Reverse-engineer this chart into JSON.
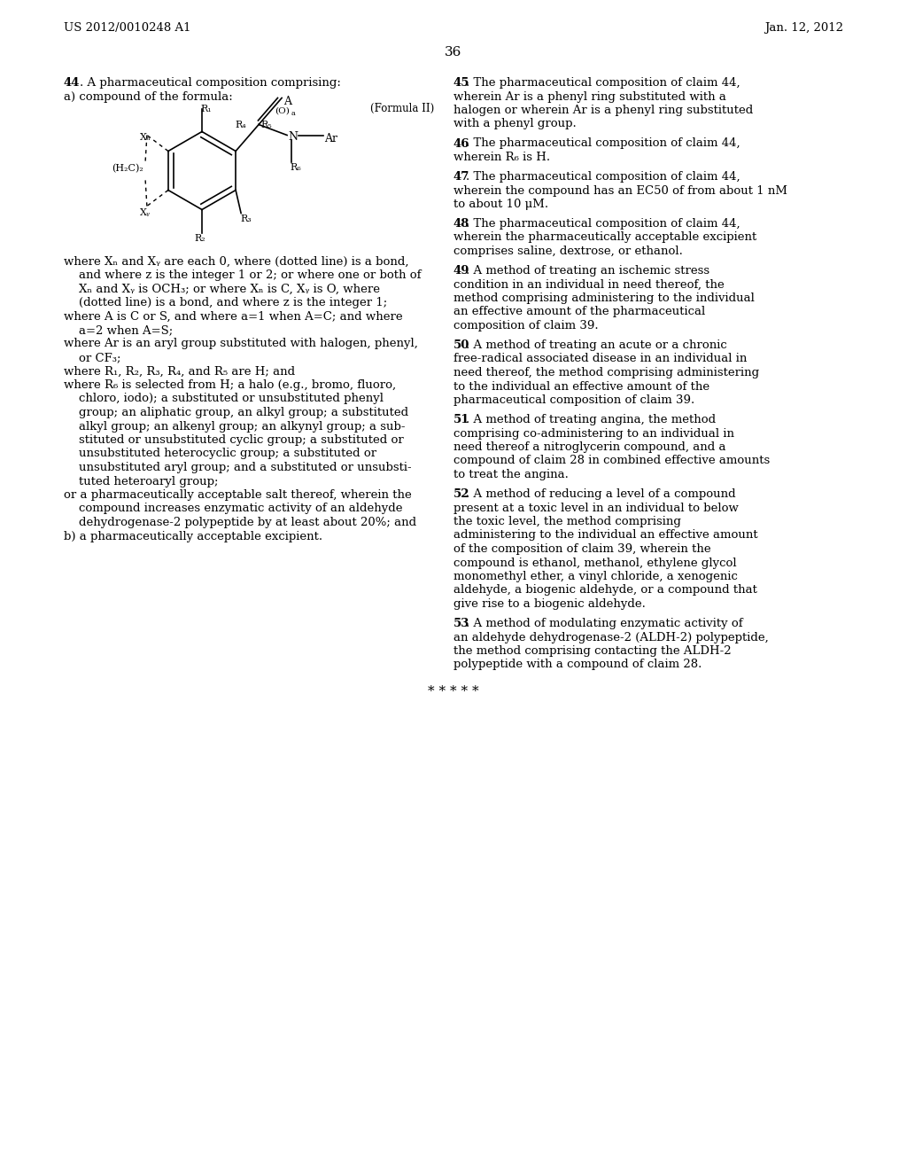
{
  "background_color": "#ffffff",
  "header_left": "US 2012/0010248 A1",
  "header_right": "Jan. 12, 2012",
  "page_number": "36",
  "where_texts": [
    "where Xₙ and Xᵧ are each 0, where (dotted line) is a bond,",
    "    and where z is the integer 1 or 2; or where one or both of",
    "    Xₙ and Xᵧ is OCH₃; or where Xₙ is C, Xᵧ is O, where",
    "    (dotted line) is a bond, and where z is the integer 1;",
    "where A is C or S, and where a=1 when A=C; and where",
    "    a=2 when A=S;",
    "where Ar is an aryl group substituted with halogen, phenyl,",
    "    or CF₃;",
    "where R₁, R₂, R₃, R₄, and R₅ are H; and",
    "where R₆ is selected from H; a halo (e.g., bromo, fluoro,",
    "    chloro, iodo); a substituted or unsubstituted phenyl",
    "    group; an aliphatic group, an alkyl group; a substituted",
    "    alkyl group; an alkenyl group; an alkynyl group; a sub-",
    "    stituted or unsubstituted cyclic group; a substituted or",
    "    unsubstituted heterocyclic group; a substituted or",
    "    unsubstituted aryl group; and a substituted or unsubsti-",
    "    tuted heteroaryl group;",
    "or a pharmaceutically acceptable salt thereof, wherein the",
    "    compound increases enzymatic activity of an aldehyde",
    "    dehydrogenase-2 polypeptide by at least about 20%; and",
    "b) a pharmaceutically acceptable excipient."
  ],
  "right_claims": [
    [
      "45",
      ". The pharmaceutical composition of claim 44, wherein Ar is a phenyl ring substituted with a halogen or wherein Ar is a phenyl ring substituted with a phenyl group."
    ],
    [
      "46",
      ". The pharmaceutical composition of claim 44, wherein R₆ is H."
    ],
    [
      "47",
      ". The pharmaceutical composition of claim 44, wherein the compound has an EC50 of from about 1 nM to about 10 μM."
    ],
    [
      "48",
      ". The pharmaceutical composition of claim 44, wherein the pharmaceutically acceptable excipient comprises saline, dextrose, or ethanol."
    ],
    [
      "49",
      ". A method of treating an ischemic stress condition in an individual in need thereof, the method comprising administering to the individual an effective amount of the pharmaceutical composition of claim 39."
    ],
    [
      "50",
      ". A method of treating an acute or a chronic free-radical associated disease in an individual in need thereof, the method comprising administering to the individual an effective amount of the pharmaceutical composition of claim 39."
    ],
    [
      "51",
      ". A method of treating angina, the method comprising co-administering to an individual in need thereof a nitroglycerin compound, and a compound of claim 28 in combined effective amounts to treat the angina."
    ],
    [
      "52",
      ". A method of reducing a level of a compound present at a toxic level in an individual to below the toxic level, the method comprising administering to the individual an effective amount of the composition of claim 39, wherein the compound is ethanol, methanol, ethylene glycol monomethyl ether, a vinyl chloride, a xenogenic aldehyde, a biogenic aldehyde, or a compound that give rise to a biogenic aldehyde."
    ],
    [
      "53",
      ". A method of modulating enzymatic activity of an aldehyde dehydrogenase-2 (ALDH-2) polypeptide, the method comprising contacting the ALDH-2 polypeptide with a compound of claim 28."
    ]
  ]
}
